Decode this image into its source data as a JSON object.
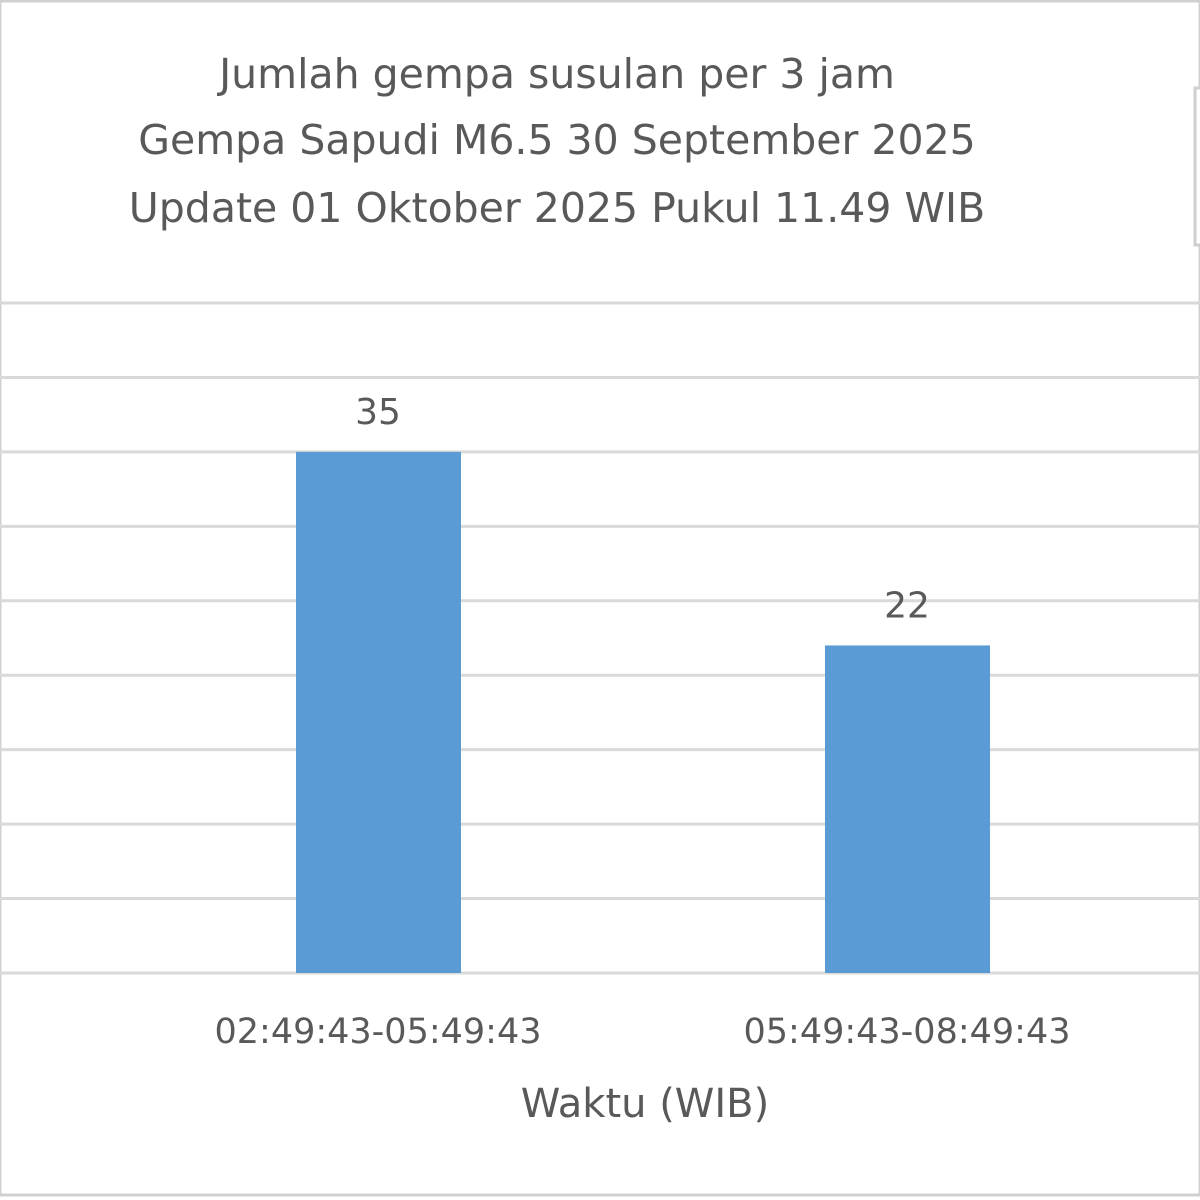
{
  "chart_data": {
    "type": "bar",
    "title": [
      "Jumlah gempa susulan per 3 jam",
      "Gempa Sapudi M6.5 30 September 2025",
      "Update 01 Oktober 2025 Pukul 11.49 WIB"
    ],
    "x_label": "Waktu (WIB)",
    "categories": [
      "02:49:43-05:49:43",
      "05:49:43-08:49:43"
    ],
    "values": [
      35,
      22
    ],
    "color": "#5b9bd5",
    "ylim": [
      0,
      45
    ],
    "yticks": [
      0,
      5,
      10,
      15,
      20,
      25,
      30,
      35,
      40,
      45
    ],
    "grid": true
  }
}
